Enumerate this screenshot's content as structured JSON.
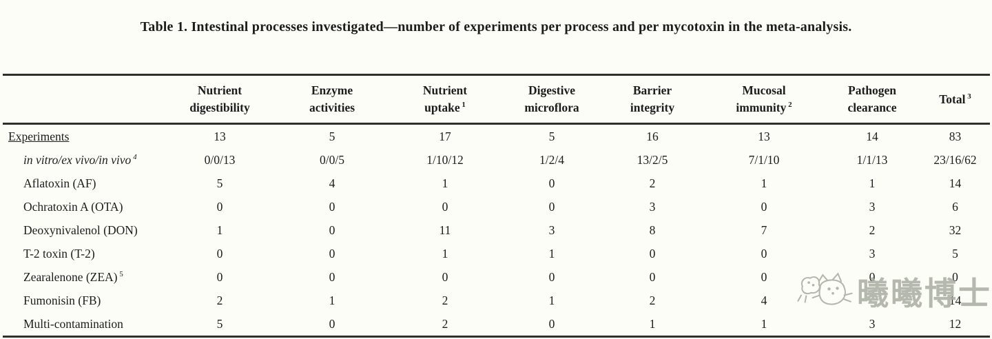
{
  "page": {
    "background": "#fdfdf7",
    "text_color": "#1c1c1c",
    "rule_color": "#2e2e2a"
  },
  "title": {
    "full": "Table 1. Intestinal processes investigated—number of experiments per process and per mycotoxin in the meta-analysis."
  },
  "table": {
    "row_header_label": "",
    "columns": [
      {
        "lines": [
          "Nutrient",
          "digestibility"
        ],
        "sup": ""
      },
      {
        "lines": [
          "Enzyme",
          "activities"
        ],
        "sup": ""
      },
      {
        "lines": [
          "Nutrient",
          "uptake"
        ],
        "sup": "1"
      },
      {
        "lines": [
          "Digestive",
          "microflora"
        ],
        "sup": ""
      },
      {
        "lines": [
          "Barrier",
          "integrity"
        ],
        "sup": ""
      },
      {
        "lines": [
          "Mucosal",
          "immunity"
        ],
        "sup": "2"
      },
      {
        "lines": [
          "Pathogen",
          "clearance"
        ],
        "sup": ""
      },
      {
        "lines": [
          "Total"
        ],
        "sup": "3"
      }
    ],
    "rows": [
      {
        "label": "Experiments",
        "sup": "",
        "style": "underline",
        "values": [
          "13",
          "5",
          "17",
          "5",
          "16",
          "13",
          "14",
          "83"
        ]
      },
      {
        "label": "in vitro/ex vivo/in vivo",
        "sup": "4",
        "style": "italic indent",
        "values": [
          "0/0/13",
          "0/0/5",
          "1/10/12",
          "1/2/4",
          "13/2/5",
          "7/1/10",
          "1/1/13",
          "23/16/62"
        ]
      },
      {
        "label": "Aflatoxin (AF)",
        "sup": "",
        "style": "indent",
        "values": [
          "5",
          "4",
          "1",
          "0",
          "2",
          "1",
          "1",
          "14"
        ]
      },
      {
        "label": "Ochratoxin A (OTA)",
        "sup": "",
        "style": "indent",
        "values": [
          "0",
          "0",
          "0",
          "0",
          "3",
          "0",
          "3",
          "6"
        ]
      },
      {
        "label": "Deoxynivalenol (DON)",
        "sup": "",
        "style": "indent",
        "values": [
          "1",
          "0",
          "11",
          "3",
          "8",
          "7",
          "2",
          "32"
        ]
      },
      {
        "label": "T-2 toxin (T-2)",
        "sup": "",
        "style": "indent",
        "values": [
          "0",
          "0",
          "1",
          "1",
          "0",
          "0",
          "3",
          "5"
        ]
      },
      {
        "label": "Zearalenone (ZEA)",
        "sup": "5",
        "style": "indent",
        "values": [
          "0",
          "0",
          "0",
          "0",
          "0",
          "0",
          "0",
          "0"
        ]
      },
      {
        "label": "Fumonisin (FB)",
        "sup": "",
        "style": "indent",
        "values": [
          "2",
          "1",
          "2",
          "1",
          "2",
          "4",
          "",
          "14"
        ]
      },
      {
        "label": "Multi-contamination",
        "sup": "",
        "style": "indent",
        "values": [
          "5",
          "0",
          "2",
          "0",
          "1",
          "1",
          "3",
          "12"
        ]
      }
    ]
  },
  "watermark": {
    "text": "曦曦博士",
    "color": "#a9aca2",
    "logo": "cat-doodle"
  }
}
